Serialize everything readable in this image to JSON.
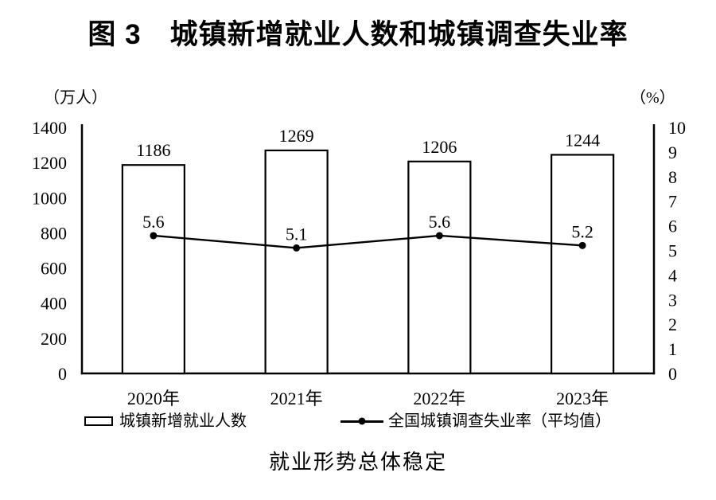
{
  "chart_data": {
    "type": "combo-bar-line",
    "title": "图 3　城镇新增就业人数和城镇调查失业率",
    "caption": "就业形势总体稳定",
    "categories": [
      "2020年",
      "2021年",
      "2022年",
      "2023年"
    ],
    "series": [
      {
        "name": "城镇新增就业人数",
        "type": "bar",
        "axis": "left",
        "values": [
          1186,
          1269,
          1206,
          1244
        ]
      },
      {
        "name": "全国城镇调查失业率（平均值）",
        "type": "line",
        "axis": "right",
        "values": [
          5.6,
          5.1,
          5.6,
          5.2
        ]
      }
    ],
    "left_axis": {
      "unit": "（万人）",
      "min": 0,
      "max": 1400,
      "step": 200,
      "ticks": [
        "1400",
        "1200",
        "1000",
        "800",
        "600",
        "400",
        "200",
        "0"
      ]
    },
    "right_axis": {
      "unit": "（%）",
      "min": 0,
      "max": 10,
      "step": 1,
      "ticks": [
        "10",
        "9",
        "8",
        "7",
        "6",
        "5",
        "4",
        "3",
        "2",
        "1",
        "0"
      ]
    },
    "grid": false,
    "legend_position": "bottom",
    "colors": {
      "bar_fill": "#ffffff",
      "stroke": "#000000",
      "background": "#ffffff",
      "text": "#000000"
    }
  }
}
